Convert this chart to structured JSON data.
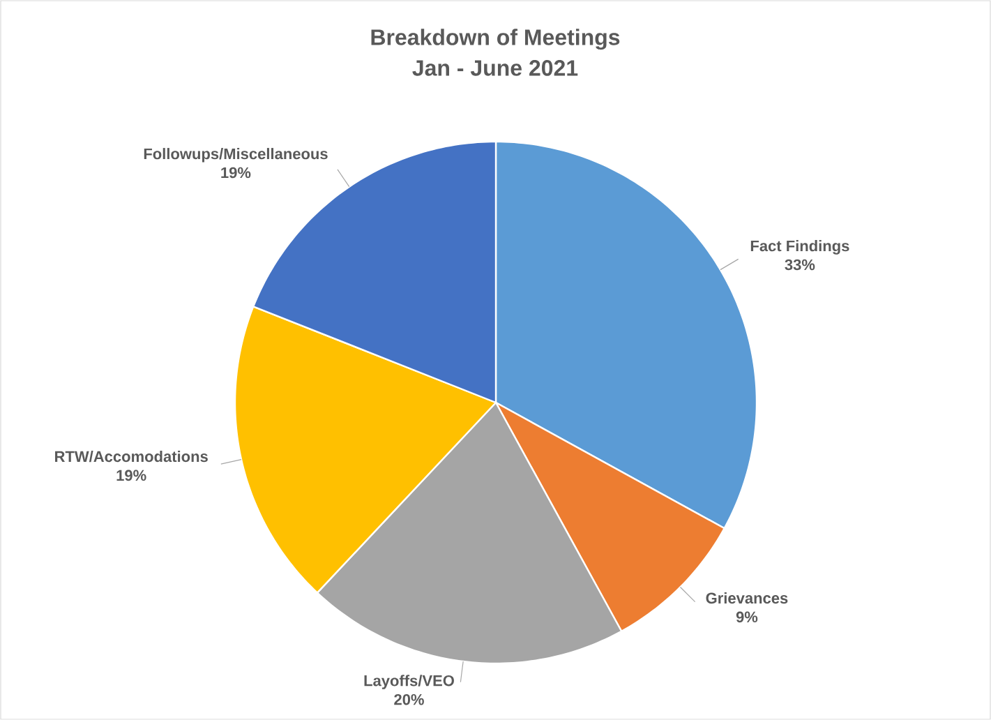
{
  "chart_data": {
    "type": "pie",
    "title": "Breakdown of Meetings",
    "subtitle": "Jan - June 2021",
    "categories": [
      "Fact Findings",
      "Grievances",
      "Layoffs/VEO",
      "RTW/Accomodations",
      "Followups/Miscellaneous"
    ],
    "values": [
      33,
      9,
      20,
      19,
      19
    ],
    "value_labels": [
      "33%",
      "9%",
      "20%",
      "19%",
      "19%"
    ],
    "colors": [
      "#5b9bd5",
      "#ed7d31",
      "#a5a5a5",
      "#ffc000",
      "#4472c4"
    ]
  }
}
